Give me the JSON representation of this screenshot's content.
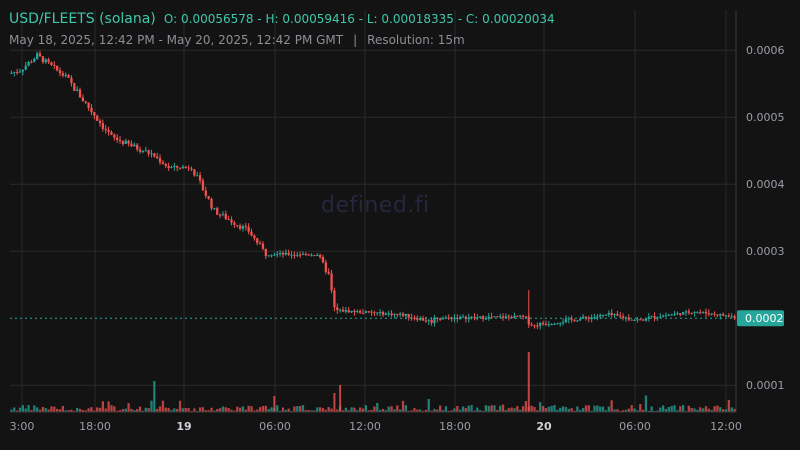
{
  "header": {
    "pair": "USD/FLEETS (solana)",
    "ohlc": "O: 0.00056578 - H: 0.00059416 - L: 0.00018335 - C: 0.00020034",
    "range": "May 18, 2025, 12:42 PM - May 20, 2025, 12:42 PM GMT",
    "separator": "|",
    "resolution": "Resolution: 15m"
  },
  "watermark": "defined.fi",
  "colors": {
    "up": "#26a69a",
    "down": "#ef5350",
    "text": "#9a9ea6",
    "grid": "#2a2a2a",
    "price_badge": "#26a69a",
    "pair_text": "#3ec8aa"
  },
  "chart_data": {
    "type": "candlestick",
    "x_tick_labels": [
      "3:00",
      "18:00",
      "19",
      "06:00",
      "12:00",
      "18:00",
      "20",
      "06:00",
      "12:00"
    ],
    "y_tick_labels": [
      "0.0006",
      "0.0005",
      "0.0004",
      "0.0003",
      "0.0002",
      "0.0001"
    ],
    "ylim": [
      6e-05,
      0.00066
    ],
    "current_price_label": "0.0002",
    "current_price": 0.0002,
    "grid": true,
    "segments": [
      {
        "t0": 0,
        "t1": 4,
        "p0": 0.000565,
        "p1": 0.00057,
        "vol": 0.25
      },
      {
        "t0": 4,
        "t1": 10,
        "p0": 0.00057,
        "p1": 0.000592,
        "vol": 0.3
      },
      {
        "t0": 10,
        "t1": 20,
        "p0": 0.000592,
        "p1": 0.00056,
        "vol": 0.3
      },
      {
        "t0": 20,
        "t1": 36,
        "p0": 0.00056,
        "p1": 0.00047,
        "vol": 0.4
      },
      {
        "t0": 36,
        "t1": 50,
        "p0": 0.00047,
        "p1": 0.000445,
        "vol": 0.3
      },
      {
        "t0": 50,
        "t1": 56,
        "p0": 0.000445,
        "p1": 0.000425,
        "vol": 0.25
      },
      {
        "t0": 56,
        "t1": 64,
        "p0": 0.000425,
        "p1": 0.000425,
        "vol": 0.2
      },
      {
        "t0": 64,
        "t1": 72,
        "p0": 0.000425,
        "p1": 0.00036,
        "vol": 0.35
      },
      {
        "t0": 72,
        "t1": 84,
        "p0": 0.00036,
        "p1": 0.00033,
        "vol": 0.3
      },
      {
        "t0": 84,
        "t1": 90,
        "p0": 0.00033,
        "p1": 0.000296,
        "vol": 0.3
      },
      {
        "t0": 90,
        "t1": 108,
        "p0": 0.000296,
        "p1": 0.000295,
        "vol": 0.15
      },
      {
        "t0": 108,
        "t1": 112,
        "p0": 0.000295,
        "p1": 0.000265,
        "vol": 0.3
      },
      {
        "t0": 112,
        "t1": 114,
        "p0": 0.000265,
        "p1": 0.000215,
        "vol": 0.2
      },
      {
        "t0": 114,
        "t1": 138,
        "p0": 0.000212,
        "p1": 0.000205,
        "vol": 0.15
      },
      {
        "t0": 138,
        "t1": 148,
        "p0": 0.000205,
        "p1": 0.000195,
        "vol": 0.2
      },
      {
        "t0": 148,
        "t1": 180,
        "p0": 0.0002,
        "p1": 0.000202,
        "vol": 0.15
      },
      {
        "t0": 180,
        "t1": 184,
        "p0": 0.000202,
        "p1": 0.000188,
        "vol": 0.3
      },
      {
        "t0": 184,
        "t1": 210,
        "p0": 0.00019,
        "p1": 0.000205,
        "vol": 0.2
      },
      {
        "t0": 210,
        "t1": 222,
        "p0": 0.000205,
        "p1": 0.000196,
        "vol": 0.2
      },
      {
        "t0": 222,
        "t1": 240,
        "p0": 0.0002,
        "p1": 0.00021,
        "vol": 0.15
      },
      {
        "t0": 240,
        "t1": 254,
        "p0": 0.00021,
        "p1": 0.000202,
        "vol": 0.15
      }
    ]
  }
}
